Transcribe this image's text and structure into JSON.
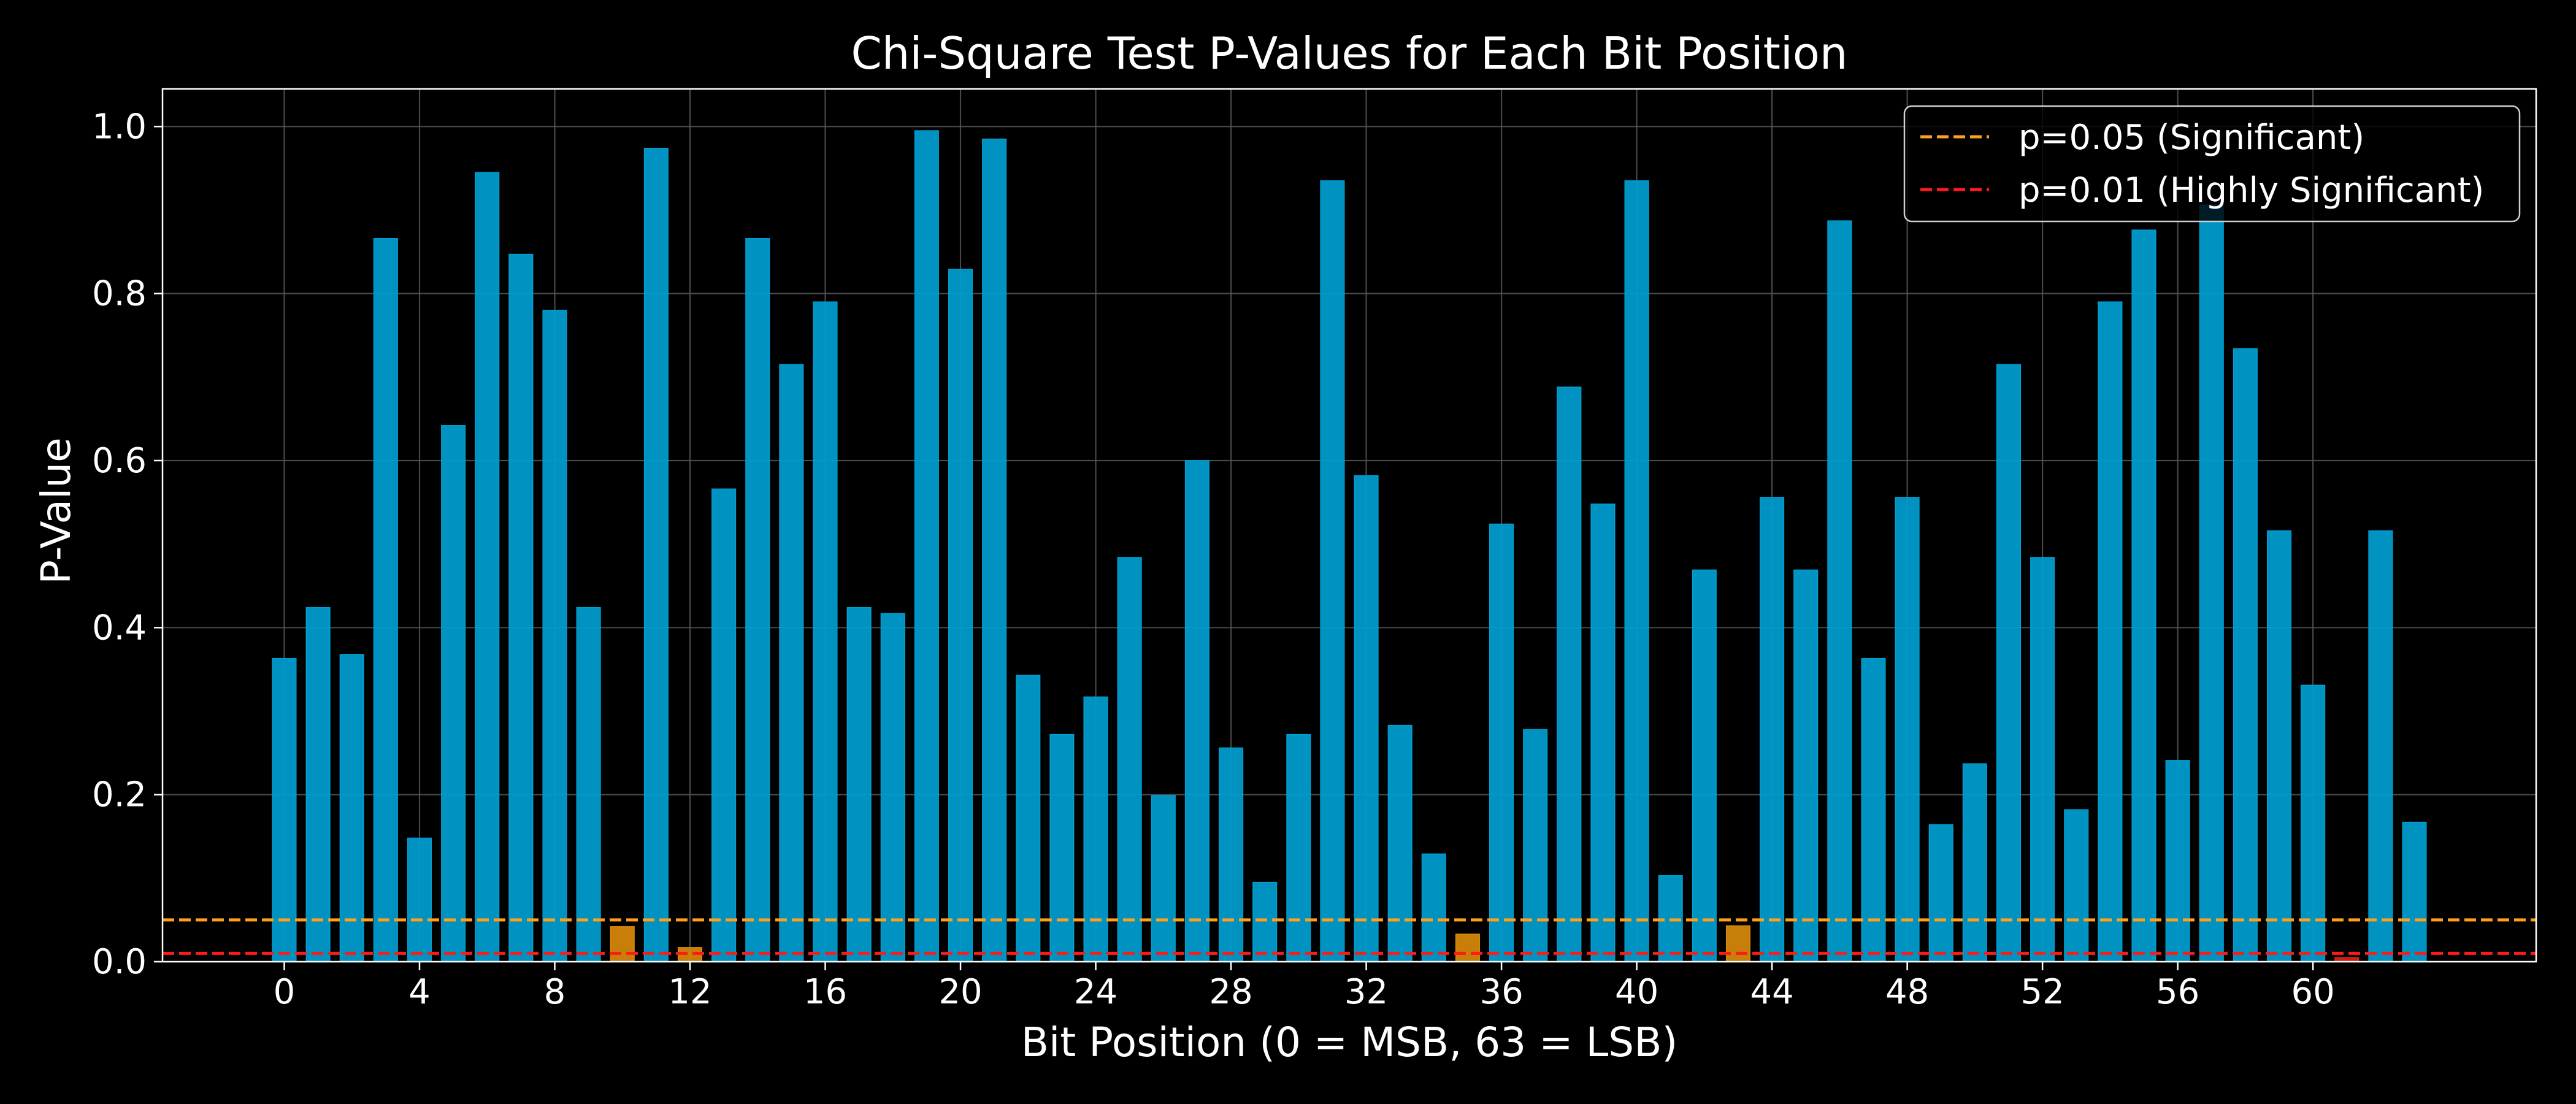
{
  "chart_data": {
    "type": "bar",
    "title": "Chi-Square Test P-Values for Each Bit Position",
    "xlabel": "Bit Position (0 = MSB, 63 = LSB)",
    "ylabel": "P-Value",
    "x": [
      0,
      1,
      2,
      3,
      4,
      5,
      6,
      7,
      8,
      9,
      10,
      11,
      12,
      13,
      14,
      15,
      16,
      17,
      18,
      19,
      20,
      21,
      22,
      23,
      24,
      25,
      26,
      27,
      28,
      29,
      30,
      31,
      32,
      33,
      34,
      35,
      36,
      37,
      38,
      39,
      40,
      41,
      42,
      43,
      44,
      45,
      46,
      47,
      48,
      49,
      50,
      51,
      52,
      53,
      54,
      55,
      56,
      57,
      58,
      59,
      60,
      61,
      62,
      63
    ],
    "values": [
      0.363,
      0.424,
      0.368,
      0.866,
      0.148,
      0.642,
      0.945,
      0.847,
      0.78,
      0.424,
      0.042,
      0.974,
      0.017,
      0.566,
      0.866,
      0.715,
      0.79,
      0.424,
      0.417,
      0.995,
      0.829,
      0.985,
      0.343,
      0.272,
      0.317,
      0.484,
      0.199,
      0.6,
      0.256,
      0.095,
      0.272,
      0.935,
      0.582,
      0.283,
      0.129,
      0.033,
      0.524,
      0.278,
      0.688,
      0.548,
      0.935,
      0.103,
      0.469,
      0.043,
      0.556,
      0.469,
      0.887,
      0.363,
      0.556,
      0.164,
      0.237,
      0.715,
      0.484,
      0.182,
      0.79,
      0.876,
      0.241,
      0.906,
      0.734,
      0.516,
      0.331,
      0.005,
      0.516,
      0.167
    ],
    "xticks": [
      0,
      4,
      8,
      12,
      16,
      20,
      24,
      28,
      32,
      36,
      40,
      44,
      48,
      52,
      56,
      60
    ],
    "xtick_labels": [
      "0",
      "4",
      "8",
      "12",
      "16",
      "20",
      "24",
      "28",
      "32",
      "36",
      "40",
      "44",
      "48",
      "52",
      "56",
      "60"
    ],
    "yticks": [
      0.0,
      0.2,
      0.4,
      0.6,
      0.8,
      1.0
    ],
    "ytick_labels": [
      "0.0",
      "0.2",
      "0.4",
      "0.6",
      "0.8",
      "1.0"
    ],
    "xlim": [
      -3.6,
      66.6
    ],
    "ylim": [
      0,
      1.045
    ],
    "grid": true,
    "legend_position": "top-right",
    "reference_lines": [
      {
        "label": "p=0.05 (Significant)",
        "value": 0.05,
        "color": "#ff9f1c",
        "style": "dashed"
      },
      {
        "label": "p=0.01 (Highly Significant)",
        "value": 0.01,
        "color": "#ff1a1a",
        "style": "dashed"
      }
    ],
    "colors": {
      "bar_normal": "#00a0d2",
      "bar_significant": "#d98a0b",
      "bar_highly_significant": "#e0201a",
      "background": "#000000",
      "axes": "#ffffff",
      "grid": "#555555",
      "text": "#ffffff"
    }
  }
}
